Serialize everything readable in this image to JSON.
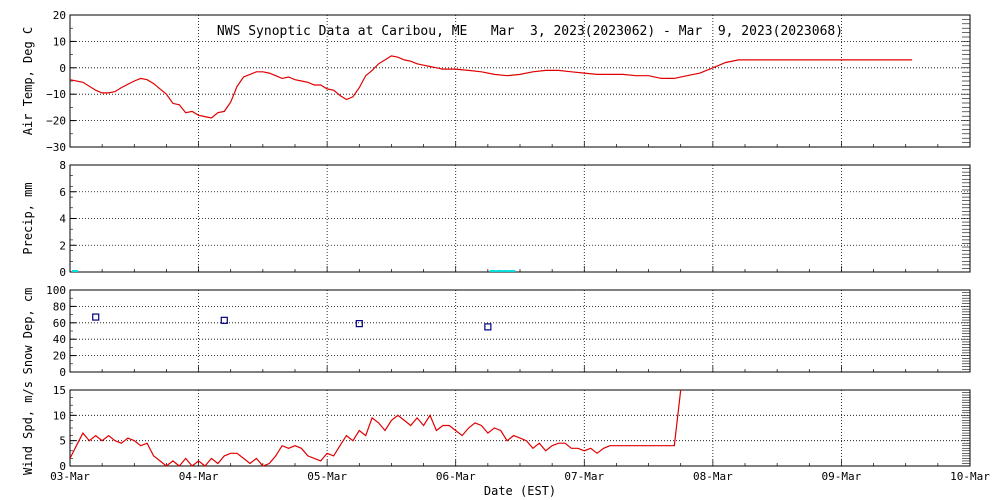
{
  "title": "NWS Synoptic Data at Caribou, ME   Mar  3, 2023(2023062) - Mar  9, 2023(2023068)",
  "xlabel": "Date (EST)",
  "x_ticks": [
    "03-Mar",
    "04-Mar",
    "05-Mar",
    "06-Mar",
    "07-Mar",
    "08-Mar",
    "09-Mar",
    "10-Mar"
  ],
  "colors": {
    "temp": "#e00000",
    "precip": "#00e0e0",
    "snow": "#000080",
    "wind": "#e00000",
    "grid": "#000000"
  },
  "chart_data": [
    {
      "type": "line",
      "ylabel": "Air Temp, Deg C",
      "ylim": [
        -30,
        20
      ],
      "y_ticks": [
        "20",
        "10",
        "0",
        "−10",
        "−20",
        "−30"
      ],
      "xlim_days": [
        0,
        7
      ],
      "grid": true,
      "series": [
        {
          "x": [
            0,
            0.1,
            0.2,
            0.25,
            0.3,
            0.35,
            0.4,
            0.5,
            0.55,
            0.6,
            0.65,
            0.7,
            0.75,
            0.8,
            0.85,
            0.9,
            0.95,
            1.0,
            1.05,
            1.1,
            1.15,
            1.2,
            1.25,
            1.3,
            1.35,
            1.4,
            1.45,
            1.5,
            1.55,
            1.6,
            1.65,
            1.7,
            1.75,
            1.8,
            1.85,
            1.9,
            1.95,
            2.0,
            2.05,
            2.1,
            2.15,
            2.2,
            2.25,
            2.3,
            2.35,
            2.4,
            2.45,
            2.5,
            2.55,
            2.6,
            2.65,
            2.7,
            2.75,
            2.8,
            2.85,
            2.9,
            2.95,
            3.0,
            3.1,
            3.2,
            3.3,
            3.4,
            3.5,
            3.6,
            3.7,
            3.8,
            3.9,
            4.0,
            4.1,
            4.2,
            4.3,
            4.4,
            4.5,
            4.6,
            4.7,
            4.8,
            4.9,
            5.0,
            5.1,
            5.2,
            5.3,
            5.4,
            5.5,
            5.6,
            5.7,
            5.8,
            5.9,
            6.0,
            6.1,
            6.2,
            6.3,
            6.4,
            6.5,
            6.55
          ],
          "y": [
            -4.5,
            -5.5,
            -8.5,
            -9.5,
            -9.5,
            -9,
            -7.5,
            -5,
            -4,
            -4.5,
            -6,
            -8,
            -10,
            -13.5,
            -14,
            -17,
            -16.5,
            -18,
            -18.5,
            -19,
            -17,
            -16.5,
            -13,
            -7,
            -3.5,
            -2.5,
            -1.5,
            -1.5,
            -2,
            -3,
            -4,
            -3.5,
            -4.5,
            -5,
            -5.5,
            -6.5,
            -6.5,
            -8,
            -8.5,
            -10.5,
            -12,
            -11,
            -7.5,
            -3,
            -1,
            1.5,
            3,
            4.5,
            4,
            3,
            2.5,
            1.5,
            1,
            0.5,
            0,
            -0.5,
            -0.5,
            -0.5,
            -1,
            -1.5,
            -2.5,
            -3,
            -2.5,
            -1.5,
            -1,
            -1,
            -1.5,
            -2,
            -2.5,
            -2.5,
            -2.5,
            -3,
            -3,
            -4,
            -4,
            -3,
            -2,
            0,
            2,
            3,
            3,
            3,
            3,
            3,
            3,
            3,
            3,
            3,
            3,
            3,
            3,
            3,
            3,
            3
          ],
          "color": "#e00000"
        }
      ]
    },
    {
      "type": "bar",
      "ylabel": "Precip, mm",
      "ylim": [
        0,
        8
      ],
      "y_ticks": [
        "8",
        "6",
        "4",
        "2",
        "0"
      ],
      "grid": true,
      "series": [
        {
          "x": [
            0.0,
            3.25,
            3.3,
            3.35,
            3.4
          ],
          "values": [
            0.1,
            0.1,
            0.1,
            0.1,
            0.1
          ],
          "color": "#00e0e0"
        }
      ]
    },
    {
      "type": "scatter",
      "ylabel": "Snow Dep, cm",
      "ylim": [
        0,
        100
      ],
      "y_ticks": [
        "100",
        "80",
        "60",
        "40",
        "20",
        "0"
      ],
      "grid": true,
      "series": [
        {
          "x": [
            0.2,
            1.2,
            2.25,
            3.25
          ],
          "y": [
            67,
            63,
            59,
            55
          ],
          "color": "#000080"
        }
      ]
    },
    {
      "type": "line",
      "ylabel": "Wind Spd, m/s",
      "ylim": [
        0,
        15
      ],
      "y_ticks": [
        "15",
        "10",
        "5",
        "0"
      ],
      "grid": true,
      "series": [
        {
          "x": [
            0,
            0.05,
            0.1,
            0.15,
            0.2,
            0.25,
            0.3,
            0.35,
            0.4,
            0.45,
            0.5,
            0.55,
            0.6,
            0.65,
            0.7,
            0.75,
            0.8,
            0.85,
            0.9,
            0.95,
            1.0,
            1.05,
            1.1,
            1.15,
            1.2,
            1.25,
            1.3,
            1.35,
            1.4,
            1.45,
            1.5,
            1.55,
            1.6,
            1.65,
            1.7,
            1.75,
            1.8,
            1.85,
            1.9,
            1.95,
            2.0,
            2.05,
            2.1,
            2.15,
            2.2,
            2.25,
            2.3,
            2.35,
            2.4,
            2.45,
            2.5,
            2.55,
            2.6,
            2.65,
            2.7,
            2.75,
            2.8,
            2.85,
            2.9,
            2.95,
            3.0,
            3.05,
            3.1,
            3.15,
            3.2,
            3.25,
            3.3,
            3.35,
            3.4,
            3.45,
            3.5,
            3.55,
            3.6,
            3.65,
            3.7,
            3.75,
            3.8,
            3.85,
            3.9,
            3.95,
            4.0,
            4.05,
            4.1,
            4.15,
            4.2,
            4.25,
            4.3,
            4.35,
            4.4,
            4.45,
            4.5,
            4.55,
            4.6,
            4.65,
            4.7,
            4.75
          ],
          "y": [
            1.5,
            4,
            6.5,
            5,
            6,
            5,
            6,
            5,
            4.5,
            5.5,
            5,
            4,
            4.5,
            2,
            1,
            0,
            1,
            0,
            1.5,
            0,
            1,
            0,
            1.5,
            0.5,
            2,
            2.5,
            2.5,
            1.5,
            0.5,
            1.5,
            0,
            0.5,
            2,
            4,
            3.5,
            4,
            3.5,
            2,
            1.5,
            1,
            2.5,
            2,
            4,
            6,
            5,
            7,
            6,
            9.5,
            8.5,
            7,
            9,
            10,
            9,
            8,
            9.5,
            8,
            10,
            7,
            8,
            8,
            7,
            6,
            7.5,
            8.5,
            8,
            6.5,
            7.5,
            7,
            5,
            6,
            5.5,
            5,
            3.5,
            4.5,
            3,
            4,
            4.5,
            4.5,
            3.5,
            3.5,
            3,
            3.5,
            2.5,
            3.5,
            4,
            4,
            4,
            4,
            4,
            4,
            4,
            4,
            4,
            4,
            4,
            15
          ],
          "color": "#e00000"
        }
      ]
    }
  ]
}
